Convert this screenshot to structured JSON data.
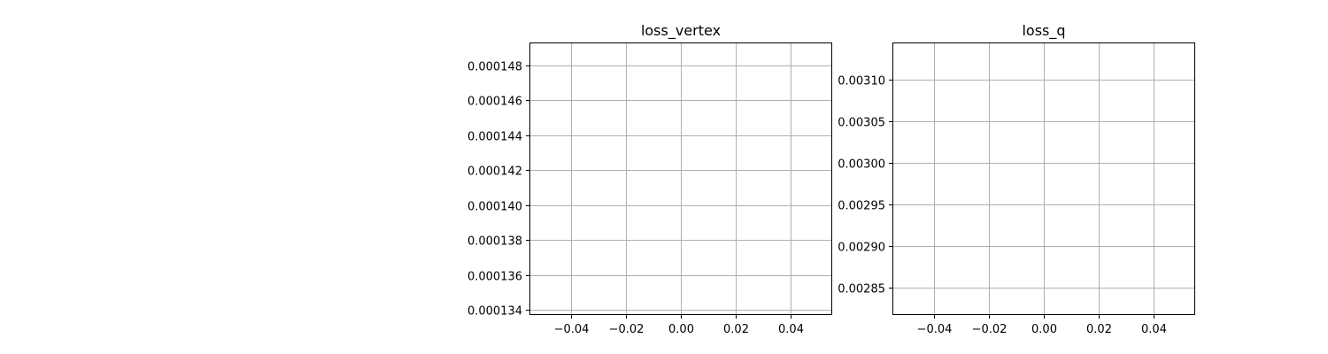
{
  "chart_data": [
    {
      "type": "line",
      "title": "loss_vertex",
      "xlabel": "",
      "ylabel": "",
      "xlim": [
        -0.055,
        0.055
      ],
      "ylim": [
        0.0001337,
        0.0001493
      ],
      "x_ticks": [
        -0.04,
        -0.02,
        0.0,
        0.02,
        0.04
      ],
      "x_tick_labels": [
        "−0.04",
        "−0.02",
        "0.00",
        "0.02",
        "0.04"
      ],
      "y_ticks": [
        0.000134,
        0.000136,
        0.000138,
        0.00014,
        0.000142,
        0.000144,
        0.000146,
        0.000148
      ],
      "y_tick_labels": [
        "0.000134",
        "0.000136",
        "0.000138",
        "0.000140",
        "0.000142",
        "0.000144",
        "0.000146",
        "0.000148"
      ],
      "grid": true,
      "series": []
    },
    {
      "type": "line",
      "title": "loss_q",
      "xlabel": "",
      "ylabel": "",
      "xlim": [
        -0.055,
        0.055
      ],
      "ylim": [
        0.002817,
        0.003145
      ],
      "x_ticks": [
        -0.04,
        -0.02,
        0.0,
        0.02,
        0.04
      ],
      "x_tick_labels": [
        "−0.04",
        "−0.02",
        "0.00",
        "0.02",
        "0.04"
      ],
      "y_ticks": [
        0.00285,
        0.0029,
        0.00295,
        0.003,
        0.00305,
        0.0031
      ],
      "y_tick_labels": [
        "0.00285",
        "0.00290",
        "0.00295",
        "0.00300",
        "0.00305",
        "0.00310"
      ],
      "grid": true,
      "series": []
    }
  ]
}
